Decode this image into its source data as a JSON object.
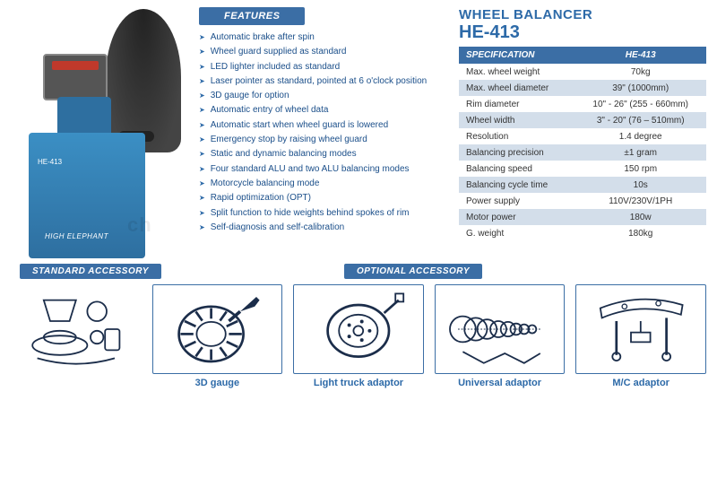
{
  "product": {
    "title_over": "WHEEL BALANCER",
    "model": "HE-413",
    "body_label": "HE-413",
    "brand": "HIGH ELEPHANT"
  },
  "watermark": "ch",
  "features": {
    "heading": "FEATURES",
    "items": [
      "Automatic brake after spin",
      "Wheel guard supplied as standard",
      "LED lighter included as standard",
      "Laser pointer as standard, pointed at 6 o'clock position",
      "3D gauge for option",
      "Automatic entry of wheel data",
      "Automatic start when wheel guard is lowered",
      "Emergency stop by raising wheel guard",
      "Static and dynamic balancing modes",
      "Four standard ALU and two ALU balancing modes",
      "Motorcycle balancing mode",
      "Rapid optimization (OPT)",
      "Split function to hide weights behind spokes of rim",
      "Self-diagnosis and self-calibration"
    ]
  },
  "spec_table": {
    "header_left": "SPECIFICATION",
    "header_right": "HE-413",
    "rows": [
      {
        "k": "Max. wheel weight",
        "v": "70kg"
      },
      {
        "k": "Max. wheel diameter",
        "v": "39\" (1000mm)"
      },
      {
        "k": "Rim diameter",
        "v": "10\" - 26\" (255 - 660mm)"
      },
      {
        "k": "Wheel width",
        "v": "3\" - 20\" (76 – 510mm)"
      },
      {
        "k": "Resolution",
        "v": "1.4 degree"
      },
      {
        "k": "Balancing precision",
        "v": "±1 gram"
      },
      {
        "k": "Balancing speed",
        "v": "150 rpm"
      },
      {
        "k": "Balancing cycle time",
        "v": "10s"
      },
      {
        "k": "Power supply",
        "v": "110V/230V/1PH"
      },
      {
        "k": "Motor power",
        "v": "180w"
      },
      {
        "k": "G. weight",
        "v": "180kg"
      }
    ]
  },
  "colors": {
    "brand_blue": "#3b6ea5",
    "text_blue": "#2d6aa8",
    "row_alt": "#d3deea",
    "machine_blue": "#3b8fc4"
  },
  "accessories": {
    "standard_label": "STANDARD ACCESSORY",
    "optional_label": "OPTIONAL ACCESSORY",
    "items": [
      {
        "caption": "",
        "icon": "cones"
      },
      {
        "caption": "3D gauge",
        "icon": "gauge"
      },
      {
        "caption": "Light truck adaptor",
        "icon": "drum"
      },
      {
        "caption": "Universal adaptor",
        "icon": "universal"
      },
      {
        "caption": "M/C adaptor",
        "icon": "mc"
      }
    ]
  }
}
